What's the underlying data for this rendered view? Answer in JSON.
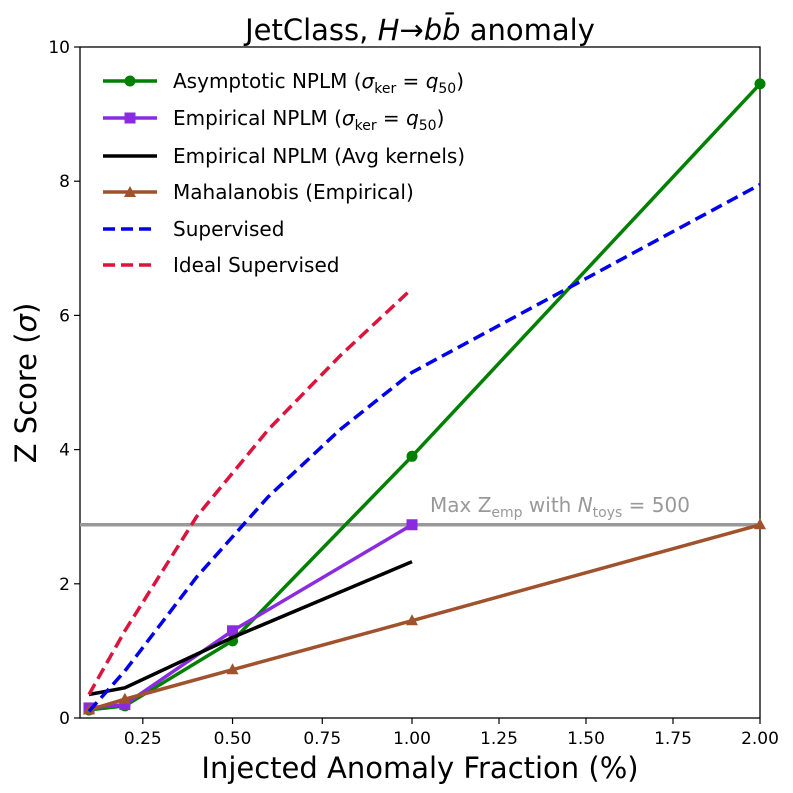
{
  "chart_data": {
    "type": "line",
    "title": "JetClass, H→bb̄ anomaly",
    "title_parts": {
      "prefix": "JetClass, ",
      "var": "H",
      "arrow": "→",
      "b1": "b",
      "b2": "b̄",
      "suffix": " anomaly"
    },
    "xlabel": "Injected Anomaly Fraction (%)",
    "ylabel": "Z Score (σ)",
    "ylabel_parts": {
      "text": "Z Score (",
      "sym": "σ",
      "close": ")"
    },
    "x_ticks": [
      0.25,
      0.5,
      0.75,
      1.0,
      1.25,
      1.5,
      1.75,
      2.0
    ],
    "x_tick_labels": [
      "0.25",
      "0.50",
      "0.75",
      "1.00",
      "1.25",
      "1.50",
      "1.75",
      "2.00"
    ],
    "y_ticks": [
      0,
      2,
      4,
      6,
      8,
      10
    ],
    "y_tick_labels": [
      "0",
      "2",
      "4",
      "6",
      "8",
      "10"
    ],
    "x_axis_note": "x axis is piecewise: linear from 0.1 to 1.00 and linear from 1.00 to 2.00",
    "x_min": 0.075,
    "x_break": 1.0,
    "x_max": 2.0,
    "ylim": [
      0,
      10
    ],
    "grid": false,
    "legend_position": "top-left",
    "reference_line": {
      "y": 2.88,
      "color": "#999999",
      "label_prefix": "Max Z",
      "label_sub1": "emp",
      "label_mid": " with ",
      "label_N": "N",
      "label_sub2": "toys",
      "label_suffix": " = 500"
    },
    "series": [
      {
        "name": "Asymptotic NPLM (σker = q50)",
        "legend_parts": {
          "pre": "Asymptotic NPLM (",
          "sigma": "σ",
          "sub": "ker",
          "eq": " = ",
          "q": "q",
          "qsub": "50",
          "post": ")"
        },
        "color": "#008000",
        "line": "solid",
        "marker": "circle",
        "x": [
          0.1,
          0.2,
          0.5,
          1.0,
          2.0
        ],
        "y": [
          0.12,
          0.18,
          1.15,
          3.9,
          9.45
        ]
      },
      {
        "name": "Empirical NPLM (σker = q50)",
        "legend_parts": {
          "pre": "Empirical NPLM (",
          "sigma": "σ",
          "sub": "ker",
          "eq": " = ",
          "q": "q",
          "qsub": "50",
          "post": ")"
        },
        "color": "#8a2be2",
        "line": "solid",
        "marker": "square",
        "x": [
          0.1,
          0.2,
          0.5,
          1.0
        ],
        "y": [
          0.15,
          0.2,
          1.3,
          2.88
        ]
      },
      {
        "name": "Empirical NPLM (Avg kernels)",
        "color": "#000000",
        "line": "solid",
        "marker": "none",
        "x": [
          0.1,
          0.2,
          0.5,
          1.0
        ],
        "y": [
          0.35,
          0.45,
          1.2,
          2.33
        ]
      },
      {
        "name": "Mahalanobis (Empirical)",
        "color": "#a0522d",
        "line": "solid",
        "marker": "triangle",
        "x": [
          0.1,
          0.2,
          0.5,
          1.0,
          2.0
        ],
        "y": [
          0.12,
          0.28,
          0.72,
          1.45,
          2.88
        ]
      },
      {
        "name": "Supervised",
        "color": "#0000ee",
        "line": "dashed",
        "marker": "none",
        "x": [
          0.1,
          0.2,
          0.4,
          0.6,
          0.8,
          1.0,
          1.5,
          2.0
        ],
        "y": [
          0.1,
          0.7,
          2.1,
          3.3,
          4.3,
          5.15,
          6.55,
          7.95
        ]
      },
      {
        "name": "Ideal Supervised",
        "color": "#dc143c",
        "line": "dashed",
        "marker": "none",
        "x": [
          0.1,
          0.2,
          0.4,
          0.6,
          0.8,
          1.0
        ],
        "y": [
          0.35,
          1.3,
          3.0,
          4.3,
          5.4,
          6.4
        ]
      }
    ]
  }
}
